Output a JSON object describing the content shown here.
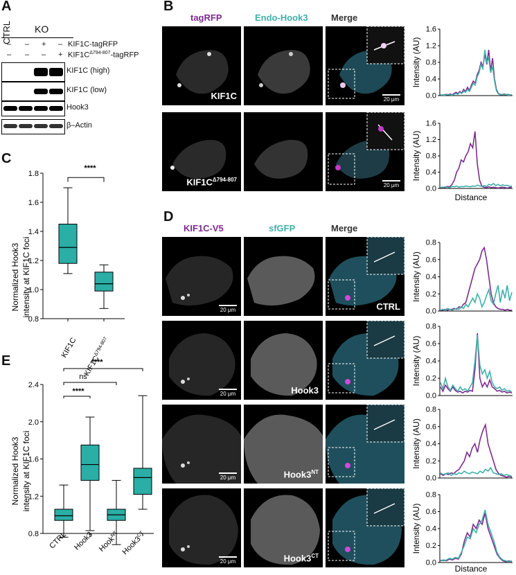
{
  "panel_labels": {
    "A": "A",
    "B": "B",
    "C": "C",
    "D": "D",
    "E": "E"
  },
  "panelA": {
    "ctrl": "CTRL",
    "ko": "KO",
    "row1_label": "KIF1C-tagRFP",
    "row2_label": "KIF1C",
    "row2_sup": "Δ794-807",
    "row2_suffix": "-tagRFP",
    "row1_signs": [
      "–",
      "–",
      "+",
      "–"
    ],
    "row2_signs": [
      "–",
      "–",
      "–",
      "+"
    ],
    "blots": [
      "KIF1C (high)",
      "KIF1C (low)",
      "Hook3",
      "β–Actin"
    ]
  },
  "panelB": {
    "channels": [
      "tagRFP",
      "Endo-Hook3",
      "Merge"
    ],
    "channel_colors": [
      "#7d2a8f",
      "#3fb0a8",
      "#333333"
    ],
    "row_labels": [
      "KIF1C",
      "KIF1C"
    ],
    "row2_sup": "Δ794-807",
    "scalebar": "20 μm",
    "plot_ylabel": "Intensity (AU)",
    "plot_xlabel": "Distance"
  },
  "panelC": {
    "ylabel_line1": "Normalized Hook3",
    "ylabel_line2": "intensity at KIF1C foci",
    "categories": [
      "KIF1C",
      "KIF1C"
    ],
    "cat2_sup": "Δ794-807",
    "sig": "****"
  },
  "panelD": {
    "channels": [
      "KIF1C-V5",
      "sfGFP",
      "Merge"
    ],
    "channel_colors": [
      "#7d2a8f",
      "#3fb0a8",
      "#333333"
    ],
    "row_labels": [
      "CTRL",
      "Hook3",
      "Hook3",
      "Hook3"
    ],
    "row_sups": [
      "",
      "",
      "NT",
      "CT"
    ],
    "scalebar": "20 μm",
    "plot_ylabel": "Intensity (AU)",
    "plot_xlabel": "Distance"
  },
  "panelE": {
    "ylabel_line1": "Normalized Hook3",
    "ylabel_line2": "intensity at KIF1C foci",
    "categories": [
      "CTRL",
      "Hook3",
      "Hook",
      "Hook3"
    ],
    "cat_sups": [
      "",
      "",
      "NT",
      "CT"
    ],
    "sig": [
      "****",
      "ns",
      "****"
    ]
  },
  "chart_data": [
    {
      "type": "box",
      "id": "panelC",
      "categories": [
        "KIF1C",
        "KIF1CΔ794-807"
      ],
      "ylim": [
        0.8,
        1.8
      ],
      "yticks": [
        0.8,
        1.0,
        1.2,
        1.4,
        1.6,
        1.8
      ],
      "boxes": [
        {
          "min": 1.11,
          "q1": 1.18,
          "median": 1.29,
          "q3": 1.45,
          "max": 1.7
        },
        {
          "min": 0.87,
          "q1": 0.99,
          "median": 1.04,
          "q3": 1.12,
          "max": 1.17
        }
      ],
      "colors": {
        "box": "#2aaea6"
      }
    },
    {
      "type": "box",
      "id": "panelE",
      "categories": [
        "CTRL",
        "Hook3",
        "HookNT",
        "Hook3CT"
      ],
      "ylim": [
        0.8,
        2.4
      ],
      "yticks": [
        0.8,
        1.2,
        1.6,
        2.0,
        2.4
      ],
      "boxes": [
        {
          "min": 0.76,
          "q1": 0.94,
          "median": 0.99,
          "q3": 1.06,
          "max": 1.32
        },
        {
          "min": 0.83,
          "q1": 1.37,
          "median": 1.54,
          "q3": 1.75,
          "max": 2.05
        },
        {
          "min": 0.68,
          "q1": 0.94,
          "median": 1.0,
          "q3": 1.06,
          "max": 1.37
        },
        {
          "min": 1.06,
          "q1": 1.22,
          "median": 1.4,
          "q3": 1.5,
          "max": 2.28
        }
      ],
      "colors": {
        "box": "#2aaea6"
      }
    },
    {
      "type": "line",
      "id": "panelB-row1",
      "ylim": [
        0,
        1.6
      ],
      "yticks": [
        0.0,
        0.4,
        0.8,
        1.2,
        1.6
      ],
      "series": [
        {
          "color": "#7d2a8f",
          "values": [
            0.02,
            0.01,
            0.02,
            0.03,
            0.02,
            0.04,
            0.02,
            0.05,
            0.08,
            0.05,
            0.1,
            0.06,
            0.15,
            0.1,
            0.2,
            0.12,
            0.25,
            0.35,
            0.3,
            0.5,
            0.6,
            0.8,
            0.7,
            1.0,
            0.75,
            1.1,
            0.6,
            0.9,
            0.4,
            0.15,
            0.05,
            0.03,
            0.02,
            0.04,
            0.02,
            0.03,
            0.01,
            0.02
          ]
        },
        {
          "color": "#3fb0a8",
          "values": [
            0.01,
            0.02,
            0.01,
            0.02,
            0.03,
            0.02,
            0.01,
            0.03,
            0.05,
            0.03,
            0.08,
            0.05,
            0.1,
            0.08,
            0.15,
            0.1,
            0.2,
            0.3,
            0.25,
            0.45,
            0.55,
            0.75,
            0.65,
            1.1,
            0.8,
            0.9,
            0.55,
            0.7,
            0.35,
            0.12,
            0.04,
            0.02,
            0.03,
            0.02,
            0.03,
            0.01,
            0.02,
            0.02
          ]
        }
      ]
    },
    {
      "type": "line",
      "id": "panelB-row2",
      "ylim": [
        0,
        1.6
      ],
      "yticks": [
        0.0,
        0.4,
        0.8,
        1.2,
        1.6
      ],
      "series": [
        {
          "color": "#7d2a8f",
          "values": [
            0.02,
            0.03,
            0.02,
            0.05,
            0.04,
            0.1,
            0.2,
            0.4,
            0.5,
            0.7,
            0.65,
            0.8,
            0.9,
            1.1,
            1.0,
            1.4,
            0.6,
            0.2,
            0.05,
            0.03,
            0.02,
            0.04,
            0.02,
            0.03,
            0.02,
            0.01,
            0.02,
            0.03,
            0.02,
            0.01,
            0.02,
            0.03
          ]
        },
        {
          "color": "#3fb0a8",
          "values": [
            0.03,
            0.02,
            0.04,
            0.03,
            0.02,
            0.05,
            0.04,
            0.06,
            0.03,
            0.05,
            0.04,
            0.06,
            0.05,
            0.04,
            0.06,
            0.05,
            0.08,
            0.06,
            0.05,
            0.07,
            0.05,
            0.1,
            0.08,
            0.12,
            0.07,
            0.1,
            0.06,
            0.09,
            0.07,
            0.08,
            0.05,
            0.06
          ]
        }
      ]
    },
    {
      "type": "line",
      "id": "panelD-row1",
      "ylim": [
        0,
        0.8
      ],
      "yticks": [
        0.0,
        0.2,
        0.4,
        0.6,
        0.8
      ],
      "series": [
        {
          "color": "#7d2a8f",
          "values": [
            0.01,
            0.01,
            0.02,
            0.01,
            0.02,
            0.02,
            0.03,
            0.02,
            0.05,
            0.04,
            0.08,
            0.1,
            0.2,
            0.3,
            0.4,
            0.5,
            0.55,
            0.6,
            0.7,
            0.74,
            0.6,
            0.4,
            0.2,
            0.1,
            0.05,
            0.03,
            0.02,
            0.02,
            0.01,
            0.02,
            0.01,
            0.01
          ]
        },
        {
          "color": "#3fb0a8",
          "values": [
            0.01,
            0.02,
            0.01,
            0.03,
            0.02,
            0.01,
            0.02,
            0.03,
            0.02,
            0.05,
            0.03,
            0.08,
            0.05,
            0.1,
            0.15,
            0.1,
            0.2,
            0.15,
            0.05,
            0.1,
            0.18,
            0.25,
            0.12,
            0.08,
            0.2,
            0.3,
            0.1,
            0.25,
            0.15,
            0.3,
            0.12,
            0.22
          ]
        }
      ]
    },
    {
      "type": "line",
      "id": "panelD-row2",
      "ylim": [
        0,
        0.8
      ],
      "yticks": [
        0.0,
        0.2,
        0.4,
        0.6,
        0.8
      ],
      "series": [
        {
          "color": "#7d2a8f",
          "values": [
            0.1,
            0.05,
            0.12,
            0.08,
            0.05,
            0.1,
            0.06,
            0.04,
            0.05,
            0.03,
            0.05,
            0.04,
            0.06,
            0.05,
            0.3,
            0.72,
            0.2,
            0.1,
            0.15,
            0.1,
            0.18,
            0.1,
            0.08,
            0.05,
            0.06,
            0.04,
            0.05,
            0.03,
            0.04,
            0.03
          ]
        },
        {
          "color": "#3fb0a8",
          "values": [
            0.15,
            0.08,
            0.2,
            0.1,
            0.06,
            0.12,
            0.08,
            0.05,
            0.1,
            0.06,
            0.08,
            0.05,
            0.1,
            0.15,
            0.4,
            0.7,
            0.35,
            0.25,
            0.3,
            0.2,
            0.28,
            0.15,
            0.1,
            0.08,
            0.1,
            0.06,
            0.08,
            0.05,
            0.06,
            0.04
          ]
        }
      ]
    },
    {
      "type": "line",
      "id": "panelD-row3",
      "ylim": [
        0,
        0.8
      ],
      "yticks": [
        0.0,
        0.2,
        0.4,
        0.6,
        0.8
      ],
      "series": [
        {
          "color": "#7d2a8f",
          "values": [
            0.05,
            0.03,
            0.05,
            0.04,
            0.06,
            0.05,
            0.08,
            0.1,
            0.15,
            0.2,
            0.3,
            0.25,
            0.35,
            0.4,
            0.3,
            0.45,
            0.55,
            0.62,
            0.4,
            0.3,
            0.2,
            0.1,
            0.05,
            0.03,
            0.02,
            0.01,
            0.02,
            0.01
          ]
        },
        {
          "color": "#3fb0a8",
          "values": [
            0.06,
            0.04,
            0.05,
            0.06,
            0.03,
            0.05,
            0.04,
            0.06,
            0.05,
            0.08,
            0.06,
            0.05,
            0.07,
            0.06,
            0.05,
            0.08,
            0.06,
            0.1,
            0.08,
            0.12,
            0.06,
            0.05,
            0.04,
            0.05,
            0.03,
            0.04,
            0.03,
            0.02
          ]
        }
      ]
    },
    {
      "type": "line",
      "id": "panelD-row4",
      "ylim": [
        0,
        0.8
      ],
      "yticks": [
        0.0,
        0.2,
        0.4,
        0.6,
        0.8
      ],
      "series": [
        {
          "color": "#7d2a8f",
          "values": [
            0.02,
            0.03,
            0.02,
            0.04,
            0.03,
            0.05,
            0.04,
            0.1,
            0.25,
            0.35,
            0.3,
            0.45,
            0.4,
            0.5,
            0.45,
            0.58,
            0.4,
            0.3,
            0.2,
            0.1,
            0.05,
            0.02,
            0.01,
            0.02,
            0.01
          ]
        },
        {
          "color": "#3fb0a8",
          "values": [
            0.03,
            0.02,
            0.03,
            0.05,
            0.04,
            0.06,
            0.05,
            0.12,
            0.2,
            0.3,
            0.28,
            0.4,
            0.35,
            0.45,
            0.5,
            0.62,
            0.45,
            0.35,
            0.25,
            0.12,
            0.06,
            0.03,
            0.02,
            0.01,
            0.02
          ]
        }
      ]
    }
  ]
}
